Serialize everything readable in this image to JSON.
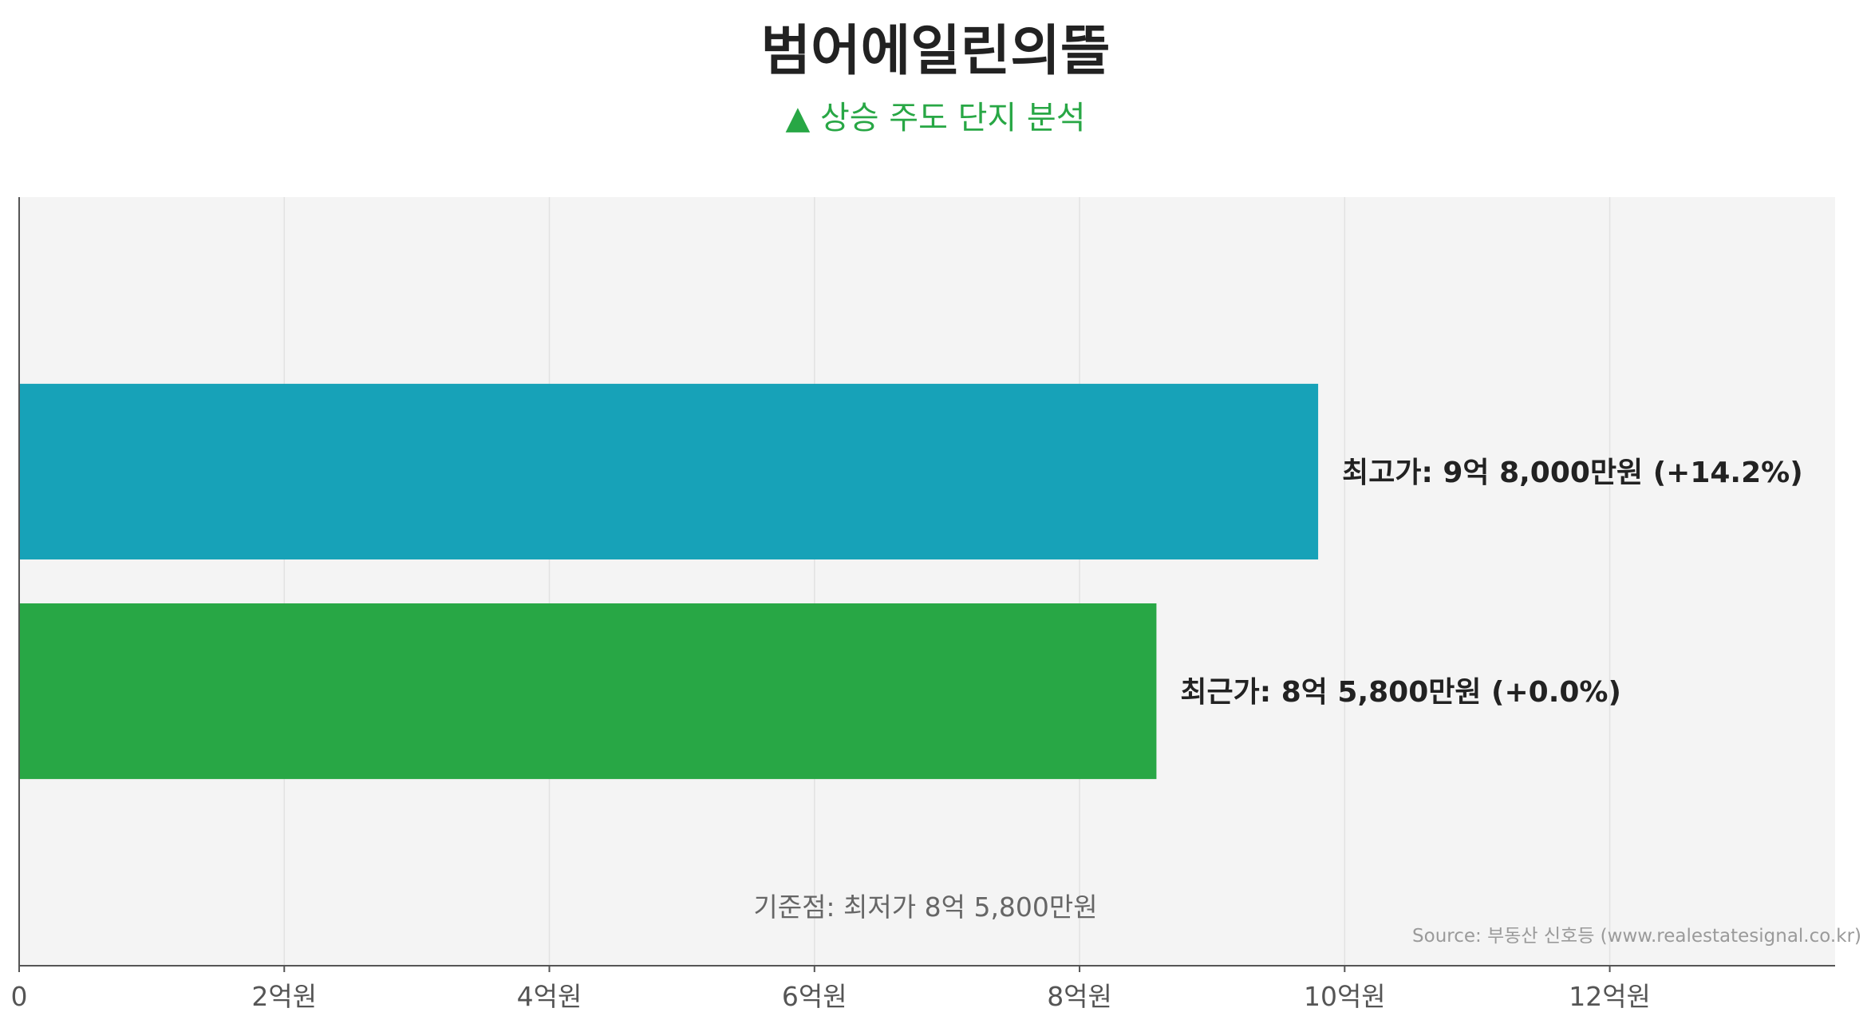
{
  "chart_data": {
    "type": "bar",
    "orientation": "horizontal",
    "title": "범어에일린의뜰",
    "subtitle": "▲ 상승 주도 단지 분석",
    "categories": [
      "최고가",
      "최근가"
    ],
    "values": [
      98000,
      85800
    ],
    "unit": "만원",
    "colors": [
      "#17a2b8",
      "#28a745"
    ],
    "bar_labels": [
      "최고가: 9억 8,000만원 (+14.2%)",
      "최근가: 8억 5,800만원 (+0.0%)"
    ],
    "xlim": [
      0,
      137000
    ],
    "x_ticks": [
      0,
      20000,
      40000,
      60000,
      80000,
      100000,
      120000
    ],
    "x_tick_labels": [
      "0",
      "2억원",
      "4억원",
      "6억원",
      "8억원",
      "10억원",
      "12억원"
    ],
    "grid": true,
    "plot_background": "#f4f4f4",
    "annotation": "기준점: 최저가 8억 5,800만원",
    "source": "Source: 부동산 신호등 (www.realestatesignal.co.kr)"
  }
}
